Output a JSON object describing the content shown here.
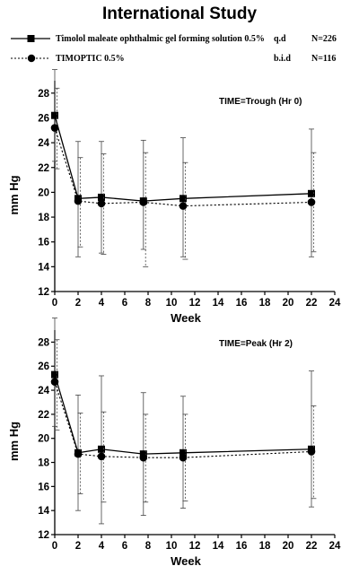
{
  "title": "International Study",
  "legend": [
    {
      "name": "Timolol maleate ophthalmic gel forming solution 0.5%",
      "dosing": "q.d",
      "n": "N=226",
      "line_style": "solid",
      "marker": "square"
    },
    {
      "name": "TIMOPTIC 0.5%",
      "dosing": "b.i.d",
      "n": "N=116",
      "line_style": "dashed",
      "marker": "circle"
    }
  ],
  "chart_data": [
    {
      "type": "line",
      "annotation": "TIME=Trough (Hr 0)",
      "xlabel": "Week",
      "ylabel": "mm Hg",
      "xlim": [
        0,
        24
      ],
      "ylim": [
        12,
        29
      ],
      "xticks": [
        0,
        2,
        4,
        6,
        8,
        10,
        12,
        14,
        16,
        18,
        20,
        22,
        24
      ],
      "yticks": [
        12,
        14,
        16,
        18,
        20,
        22,
        24,
        26,
        28
      ],
      "grid": false,
      "series": [
        {
          "name": "Timolol maleate ophthalmic gel forming solution 0.5%",
          "style": "solid",
          "marker": "square",
          "x": [
            0,
            2,
            4,
            7.6,
            11,
            22
          ],
          "y": [
            26.2,
            19.5,
            19.6,
            19.3,
            19.5,
            19.9
          ],
          "err_low": [
            22.5,
            14.8,
            15.1,
            15.4,
            14.8,
            14.8
          ],
          "err_high": [
            29.9,
            24.1,
            24.1,
            24.2,
            24.4,
            25.1
          ]
        },
        {
          "name": "TIMOPTIC 0.5%",
          "style": "dashed",
          "marker": "circle",
          "x": [
            0,
            2,
            4,
            7.6,
            11,
            22
          ],
          "y": [
            25.2,
            19.3,
            19.1,
            19.2,
            18.9,
            19.2
          ],
          "err_low": [
            21.9,
            15.6,
            15.0,
            14.0,
            14.6,
            15.2
          ],
          "err_high": [
            28.4,
            22.8,
            23.1,
            23.2,
            22.4,
            23.2
          ]
        }
      ]
    },
    {
      "type": "line",
      "annotation": "TIME=Peak (Hr 2)",
      "xlabel": "Week",
      "ylabel": "mm Hg",
      "xlim": [
        0,
        24
      ],
      "ylim": [
        12,
        29
      ],
      "xticks": [
        0,
        2,
        4,
        6,
        8,
        10,
        12,
        14,
        16,
        18,
        20,
        22,
        24
      ],
      "yticks": [
        12,
        14,
        16,
        18,
        20,
        22,
        24,
        26,
        28
      ],
      "grid": false,
      "series": [
        {
          "name": "Timolol maleate ophthalmic gel forming solution 0.5%",
          "style": "solid",
          "marker": "square",
          "x": [
            0,
            2,
            4,
            7.6,
            11,
            22
          ],
          "y": [
            25.3,
            18.8,
            19.1,
            18.7,
            18.8,
            19.1
          ],
          "err_low": [
            21.0,
            14.0,
            12.9,
            13.6,
            14.2,
            14.3
          ],
          "err_high": [
            30.0,
            23.6,
            25.2,
            23.8,
            23.5,
            25.6
          ]
        },
        {
          "name": "TIMOPTIC 0.5%",
          "style": "dashed",
          "marker": "circle",
          "x": [
            0,
            2,
            4,
            7.6,
            11,
            22
          ],
          "y": [
            24.7,
            18.7,
            18.5,
            18.4,
            18.4,
            18.9
          ],
          "err_low": [
            20.7,
            15.4,
            14.7,
            14.7,
            14.8,
            15.0
          ],
          "err_high": [
            28.2,
            22.1,
            22.2,
            22.0,
            22.0,
            22.7
          ]
        }
      ]
    }
  ]
}
